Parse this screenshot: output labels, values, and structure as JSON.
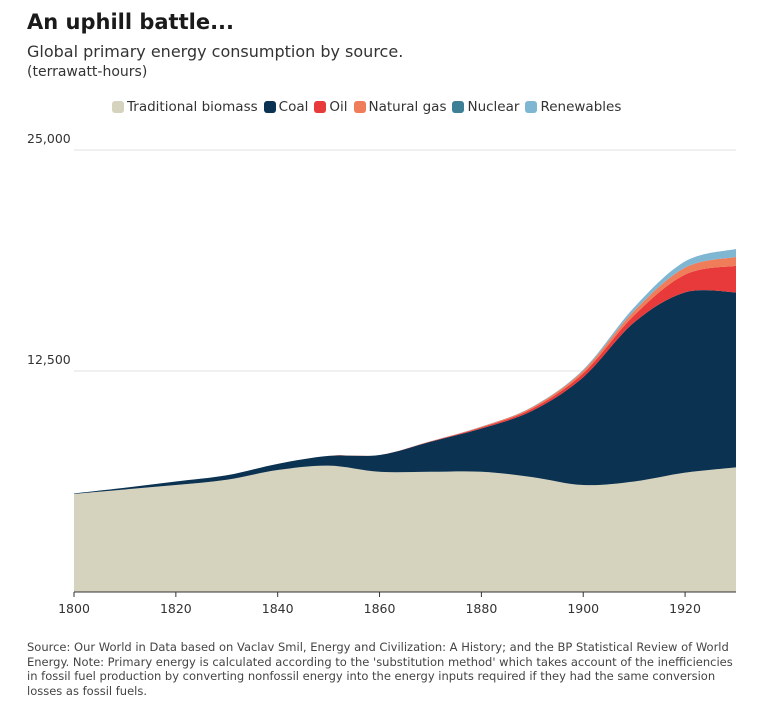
{
  "header": {
    "title": "An uphill battle...",
    "subtitle": "Global primary energy consumption by source.",
    "unit": "(terrawatt-hours)"
  },
  "footer": {
    "source": "Source: Our World in Data based on Vaclav Smil, Energy and Civilization: A History; and the BP Statistical Review of World Energy. Note: Primary energy is calculated according to the 'substitution method' which takes account of the inefficiencies in fossil fuel production by converting nonfossil energy into the energy inputs required if they had the same conversion losses as fossil fuels."
  },
  "chart_data": {
    "type": "area",
    "stacked": true,
    "title": "An uphill battle...",
    "subtitle": "Global primary energy consumption by source.",
    "ylabel": "(terrawatt-hours)",
    "xlim": [
      1800,
      1930
    ],
    "ylim": [
      0,
      25000
    ],
    "x_ticks": [
      1800,
      1820,
      1840,
      1860,
      1880,
      1900,
      1920
    ],
    "x_tick_labels": [
      "1800",
      "1820",
      "1840",
      "1860",
      "1880",
      "1900",
      "1920"
    ],
    "y_ticks": [
      12500,
      25000
    ],
    "y_tick_labels": [
      "12,500",
      "25,000"
    ],
    "grid": true,
    "legend_position": "top",
    "x": [
      1800,
      1810,
      1820,
      1830,
      1840,
      1850,
      1860,
      1870,
      1880,
      1890,
      1900,
      1910,
      1920,
      1930
    ],
    "series": [
      {
        "name": "Traditional biomass",
        "color": "#d5d2be",
        "values": [
          5550,
          5800,
          6050,
          6350,
          6900,
          7150,
          6800,
          6800,
          6800,
          6500,
          6050,
          6250,
          6750,
          7050
        ]
      },
      {
        "name": "Coal",
        "color": "#0b3250",
        "values": [
          30,
          100,
          200,
          250,
          350,
          550,
          950,
          1700,
          2450,
          3750,
          6100,
          9000,
          10200,
          9900
        ]
      },
      {
        "name": "Oil",
        "color": "#e83a3a",
        "values": [
          0,
          0,
          0,
          0,
          0,
          0,
          0,
          20,
          60,
          120,
          220,
          400,
          1000,
          1500
        ]
      },
      {
        "name": "Natural gas",
        "color": "#f07d5a",
        "values": [
          0,
          0,
          0,
          0,
          0,
          0,
          0,
          10,
          40,
          90,
          150,
          250,
          400,
          500
        ]
      },
      {
        "name": "Nuclear",
        "color": "#3d7f94",
        "values": [
          0,
          0,
          0,
          0,
          0,
          0,
          0,
          0,
          0,
          0,
          0,
          0,
          0,
          0
        ]
      },
      {
        "name": "Renewables",
        "color": "#7fb6d2",
        "values": [
          0,
          0,
          0,
          0,
          0,
          0,
          0,
          0,
          10,
          20,
          60,
          200,
          350,
          450
        ]
      }
    ]
  }
}
